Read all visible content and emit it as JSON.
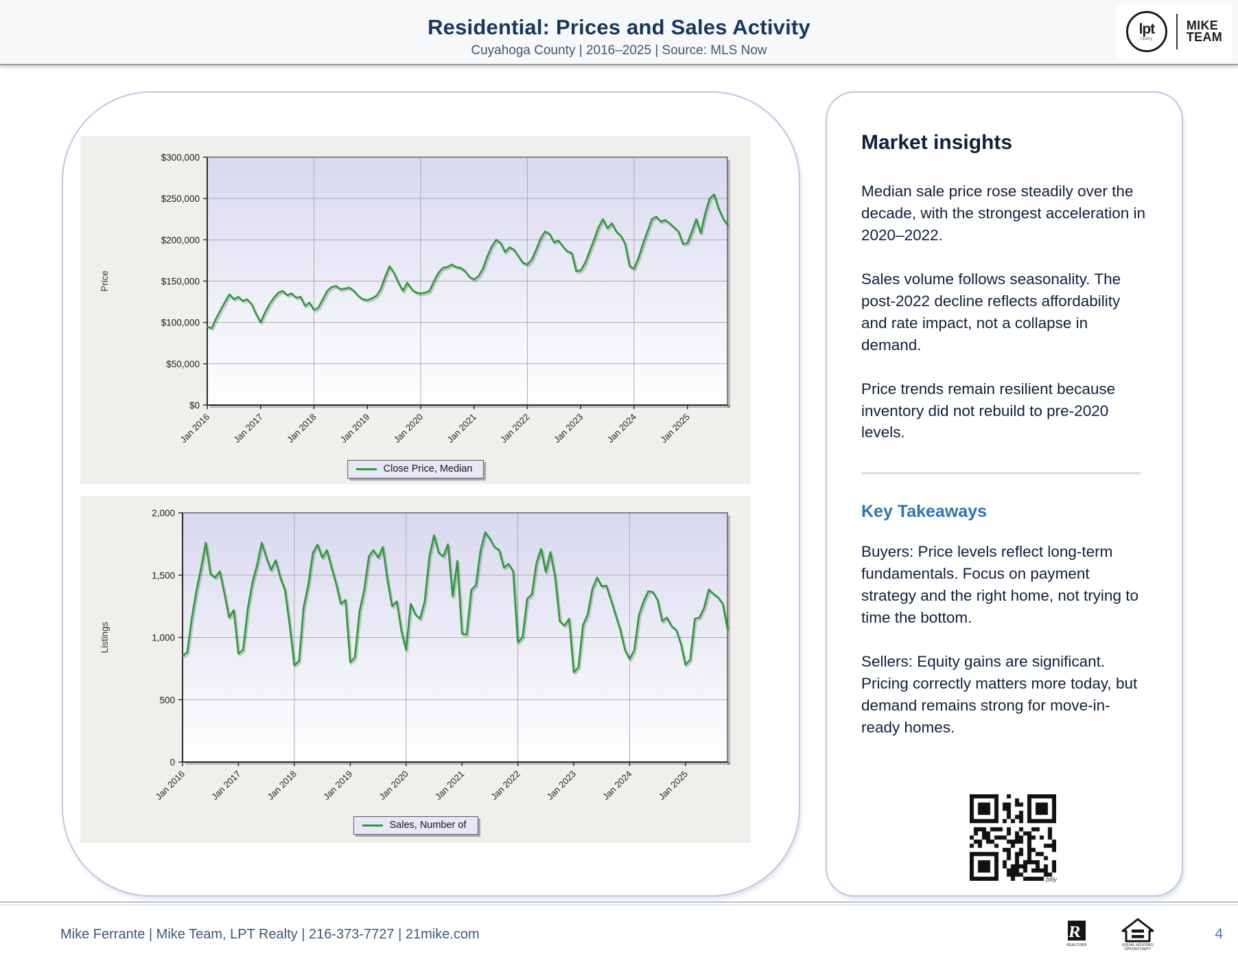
{
  "header": {
    "title": "Residential: Prices and Sales Activity",
    "subtitle": "Cuyahoga County | 2016–2025 | Source: MLS Now",
    "brand": {
      "lpt": "lpt",
      "lpt_sub": "realty",
      "team_line1": "MIKE",
      "team_line2": "TEAM"
    }
  },
  "chart_data": [
    {
      "type": "line",
      "series_name": "Close Price, Median",
      "legend": "Close Price, Median",
      "legend_position": "bottom",
      "ylabel": "Price",
      "grid": true,
      "line_color": "#2a9b33",
      "ylim": [
        0,
        300000
      ],
      "y_ticks": [
        0,
        50000,
        100000,
        150000,
        200000,
        250000,
        300000
      ],
      "y_tick_labels": [
        "$0",
        "$50,000",
        "$100,000",
        "$150,000",
        "$200,000",
        "$250,000",
        "$300,000"
      ],
      "x_labels": [
        "Jan 2016",
        "Jan 2017",
        "Jan 2018",
        "Jan 2019",
        "Jan 2020",
        "Jan 2021",
        "Jan 2022",
        "Jan 2023",
        "Jan 2024",
        "Jan 2025"
      ],
      "x_range": "Jan 2016 – Oct 2025 (monthly)",
      "values": [
        95000,
        93000,
        105000,
        115000,
        125000,
        134000,
        128000,
        131000,
        126000,
        128000,
        122000,
        110000,
        100000,
        112000,
        122000,
        130000,
        136000,
        138000,
        133000,
        135000,
        130000,
        131000,
        120000,
        124000,
        115000,
        118000,
        128000,
        138000,
        143000,
        144000,
        140000,
        141000,
        142000,
        138000,
        132000,
        128000,
        127000,
        129000,
        132000,
        140000,
        155000,
        168000,
        160000,
        148000,
        138000,
        148000,
        140000,
        136000,
        135000,
        136000,
        138000,
        150000,
        160000,
        166000,
        167000,
        170000,
        167000,
        166000,
        162000,
        155000,
        152000,
        156000,
        165000,
        180000,
        192000,
        200000,
        196000,
        185000,
        191000,
        188000,
        180000,
        172000,
        170000,
        176000,
        188000,
        202000,
        210000,
        207000,
        197000,
        199000,
        192000,
        186000,
        184000,
        162000,
        163000,
        172000,
        186000,
        200000,
        215000,
        225000,
        214000,
        220000,
        210000,
        205000,
        195000,
        168000,
        165000,
        178000,
        195000,
        210000,
        225000,
        228000,
        222000,
        224000,
        220000,
        215000,
        210000,
        195000,
        196000,
        210000,
        225000,
        208000,
        232000,
        250000,
        255000,
        238000,
        226000,
        218000
      ]
    },
    {
      "type": "line",
      "series_name": "Sales, Number of",
      "legend": "Sales, Number of",
      "legend_position": "bottom",
      "ylabel": "Listings",
      "grid": true,
      "line_color": "#2a9b33",
      "ylim": [
        0,
        2000
      ],
      "y_ticks": [
        0,
        500,
        1000,
        1500,
        2000
      ],
      "y_tick_labels": [
        "0",
        "500",
        "1,000",
        "1,500",
        "2,000"
      ],
      "x_labels": [
        "Jan 2016",
        "Jan 2017",
        "Jan 2018",
        "Jan 2019",
        "Jan 2020",
        "Jan 2021",
        "Jan 2022",
        "Jan 2023",
        "Jan 2024",
        "Jan 2025"
      ],
      "x_range": "Jan 2016 – Oct 2025 (monthly)",
      "values": [
        850,
        880,
        1160,
        1380,
        1560,
        1760,
        1510,
        1480,
        1530,
        1350,
        1160,
        1220,
        870,
        900,
        1230,
        1440,
        1580,
        1760,
        1640,
        1540,
        1620,
        1480,
        1380,
        1100,
        775,
        810,
        1240,
        1420,
        1680,
        1745,
        1640,
        1700,
        1560,
        1430,
        1270,
        1300,
        800,
        840,
        1210,
        1380,
        1650,
        1700,
        1640,
        1725,
        1460,
        1250,
        1290,
        1050,
        900,
        1270,
        1185,
        1150,
        1290,
        1650,
        1820,
        1680,
        1650,
        1747,
        1330,
        1615,
        1030,
        1025,
        1380,
        1420,
        1700,
        1845,
        1790,
        1725,
        1700,
        1560,
        1590,
        1530,
        960,
        1000,
        1310,
        1345,
        1600,
        1710,
        1525,
        1685,
        1485,
        1130,
        1095,
        1150,
        720,
        760,
        1100,
        1185,
        1390,
        1480,
        1410,
        1415,
        1300,
        1180,
        1060,
        900,
        825,
        900,
        1180,
        1290,
        1370,
        1365,
        1300,
        1130,
        1160,
        1090,
        1060,
        950,
        780,
        820,
        1150,
        1160,
        1240,
        1385,
        1350,
        1320,
        1270,
        1070
      ]
    }
  ],
  "insights": {
    "heading": "Market insights",
    "paragraphs": [
      "Median sale price rose steadily over the decade, with the strongest acceleration in 2020–2022.",
      "Sales volume follows seasonality. The post-2022 decline reflects affordability and rate impact, not a collapse in demand.",
      "Price trends remain resilient because inventory did not rebuild to pre-2020 levels."
    ],
    "takeaways_heading": "Key Takeaways",
    "takeaways": [
      "Buyers: Price levels reflect long-term fundamentals. Focus on payment strategy and the right home, not trying to time the bottom.",
      "Sellers: Equity gains are significant. Pricing correctly matters more today, but demand remains strong for move-in-ready homes."
    ],
    "qr_label": "bitly"
  },
  "footer": {
    "contact": "Mike Ferrante | Mike Team, LPT Realty | 216-373-7727 | 21mike.com",
    "page_number": "4",
    "realtor_label": "REALTOR®",
    "eho_label_1": "EQUAL HOUSING",
    "eho_label_2": "OPPORTUNITY"
  },
  "colors": {
    "title_navy": "#17365d",
    "body_navy": "#101f3c",
    "takeaways_blue": "#2e73b8",
    "line_green": "#2a9b33",
    "footer_blue": "#4273be"
  }
}
